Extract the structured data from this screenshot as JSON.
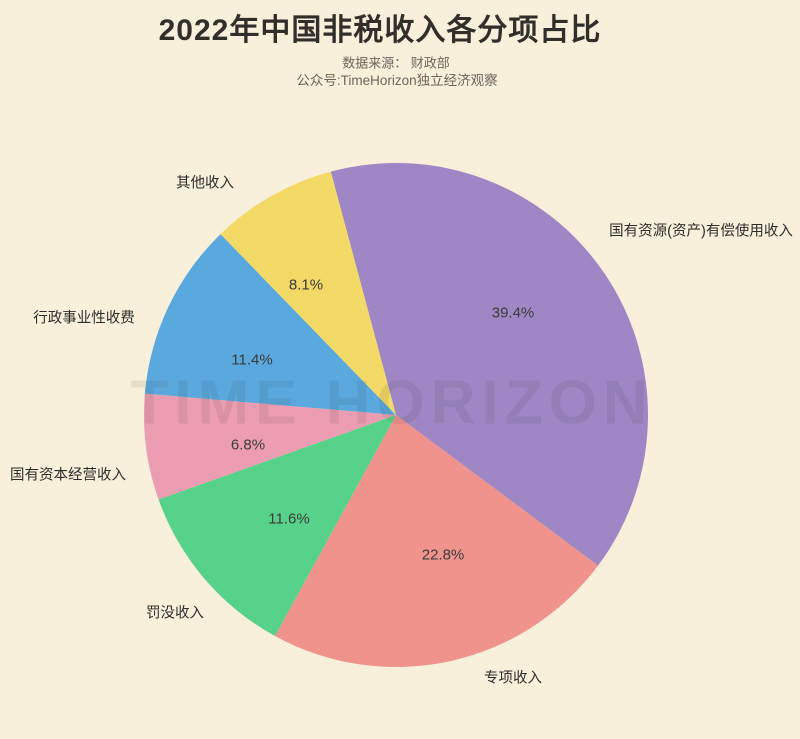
{
  "header": {
    "title": "2022年中国非税收入各分项占比",
    "source_line": "数据来源： 财政部",
    "account_line": "公众号:TimeHorizon独立经济观察"
  },
  "watermark": "TIME HORIZON",
  "colors": {
    "background": "#f8f0db",
    "title_text": "#322e29",
    "subtitle_text": "#6b665c",
    "label_text": "#2d2d2d"
  },
  "chart_data": {
    "type": "pie",
    "title": "2022年中国非税收入各分项占比",
    "start_angle_deg": 105,
    "direction": "clockwise",
    "legend_position": "none",
    "slices": [
      {
        "label": "国有资源(资产)有偿使用收入",
        "value": 39.4,
        "pct_label": "39.4%",
        "color": "#9e87c4"
      },
      {
        "label": "专项收入",
        "value": 22.8,
        "pct_label": "22.8%",
        "color": "#f0938c"
      },
      {
        "label": "罚没收入",
        "value": 11.6,
        "pct_label": "11.6%",
        "color": "#57d28a"
      },
      {
        "label": "国有资本经营收入",
        "value": 6.8,
        "pct_label": "6.8%",
        "color": "#ec9db1"
      },
      {
        "label": "行政事业性收费",
        "value": 11.4,
        "pct_label": "11.4%",
        "color": "#5aa9de"
      },
      {
        "label": "其他收入",
        "value": 8.1,
        "pct_label": "8.1%",
        "color": "#f3d966"
      }
    ]
  }
}
